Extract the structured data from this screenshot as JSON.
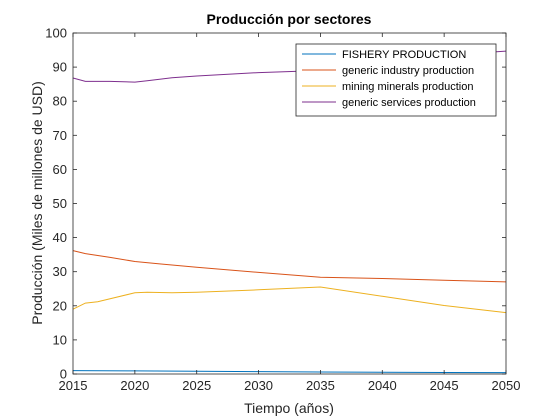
{
  "chart_data": {
    "type": "line",
    "title": "Producción por sectores",
    "xlabel": "Tiempo (años)",
    "ylabel": "Producción (Miles de millones de USD)",
    "xlim": [
      2015,
      2050
    ],
    "ylim": [
      0,
      100
    ],
    "xticks": [
      "2015",
      "2020",
      "2025",
      "2030",
      "2035",
      "2040",
      "2045",
      "2050"
    ],
    "yticks": [
      "0",
      "10",
      "20",
      "30",
      "40",
      "50",
      "60",
      "70",
      "80",
      "90",
      "100"
    ],
    "grid": false,
    "legend_position": "top-right",
    "series": [
      {
        "name": "FISHERY PRODUCTION",
        "color": "#0072BD",
        "x": [
          2015,
          2020,
          2025,
          2030,
          2035,
          2040,
          2045,
          2050
        ],
        "y": [
          1.0,
          0.9,
          0.8,
          0.7,
          0.6,
          0.5,
          0.45,
          0.4
        ]
      },
      {
        "name": "generic industry production",
        "color": "#D95319",
        "x": [
          2015,
          2016,
          2018,
          2020,
          2022,
          2025,
          2030,
          2035,
          2040,
          2045,
          2050
        ],
        "y": [
          36.2,
          35.3,
          34.2,
          33.0,
          32.3,
          31.3,
          29.8,
          28.4,
          28.0,
          27.5,
          27.0
        ]
      },
      {
        "name": "mining minerals production",
        "color": "#EDB120",
        "x": [
          2015,
          2016,
          2017,
          2020,
          2021,
          2023,
          2025,
          2030,
          2035,
          2040,
          2045,
          2050
        ],
        "y": [
          19.0,
          20.8,
          21.2,
          23.8,
          24.0,
          23.8,
          24.0,
          24.7,
          25.5,
          22.8,
          20.1,
          18.0
        ]
      },
      {
        "name": "generic services production",
        "color": "#7E2F8E",
        "x": [
          2015,
          2016,
          2018,
          2020,
          2021,
          2023,
          2025,
          2030,
          2035,
          2040,
          2045,
          2050
        ],
        "y": [
          86.8,
          85.8,
          85.8,
          85.6,
          86.0,
          86.9,
          87.4,
          88.4,
          89.0,
          91.0,
          93.5,
          94.7
        ]
      }
    ]
  }
}
